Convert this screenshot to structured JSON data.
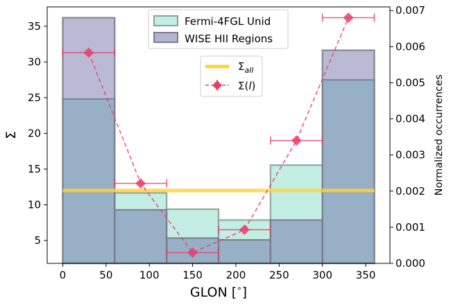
{
  "chart_data": {
    "type": "bar",
    "xlabel": "GLON [$^{\\circ}$]",
    "xlabel_text": "GLON [",
    "xlabel_deg": "∘",
    "xlabel_close": "]",
    "ylabel_left": "Σ",
    "ylabel_right": "Normalized occurrences",
    "xlim": [
      -18,
      378
    ],
    "ylim_left": [
      1.8,
      37.7
    ],
    "ylim_right": [
      0.0,
      0.0071
    ],
    "x_ticks": [
      0,
      50,
      100,
      150,
      200,
      250,
      300,
      350
    ],
    "y_left_ticks": [
      5,
      10,
      15,
      20,
      25,
      30,
      35
    ],
    "y_right_ticks": [
      "0.000",
      "0.001",
      "0.002",
      "0.003",
      "0.004",
      "0.005",
      "0.006",
      "0.007"
    ],
    "bin_edges": [
      0,
      60,
      120,
      180,
      240,
      300,
      360
    ],
    "histograms": [
      {
        "name": "Fermi-4FGL Unid",
        "values": [
          0.00455,
          0.00195,
          0.0015,
          0.0012,
          0.00272,
          0.00508
        ],
        "fill": "#c3eee3",
        "edge": "#8c9e98"
      },
      {
        "name": "WISE HII Regions",
        "values": [
          0.0068,
          0.00148,
          0.0007,
          0.00065,
          0.0012,
          0.0059
        ],
        "fill": "#5a5a9a",
        "edge": "#7b7b8b"
      }
    ],
    "sigma_all": {
      "name": "Σall",
      "label_main": "Σ",
      "label_sub": "all",
      "value": 12.0,
      "color": "#ffd23a"
    },
    "sigma_l": {
      "name": "Σ(l)",
      "label_main": "Σ(",
      "label_it": "l",
      "label_close": ")",
      "color": "#e83e6b",
      "x": [
        30,
        90,
        150,
        210,
        270,
        330
      ],
      "y": [
        31.3,
        13.0,
        3.3,
        6.5,
        19.0,
        36.2
      ],
      "xerr": 30
    }
  }
}
